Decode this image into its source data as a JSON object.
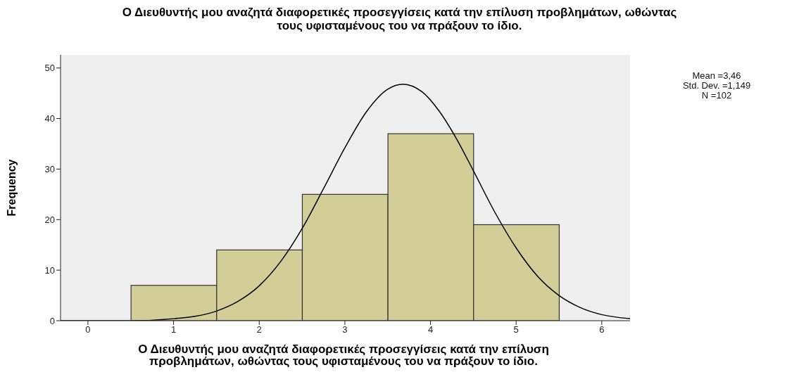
{
  "chart_data": {
    "type": "histogram",
    "title": "Ο Διευθυντής μου αναζητά διαφορετικές προσεγγίσεις κατά την επίλυση προβλημάτων, ωθώντας τους υφισταμένους του να πράξουν το ίδιο.",
    "xlabel": "Ο Διευθυντής μου αναζητά διαφορετικές προσεγγίσεις κατά την επίλυση προβλημάτων, ωθώντας τους υφισταμένους του να πράξουν το ίδιο.",
    "ylabel": "Frequency",
    "bins": [
      0.5,
      1.5,
      2.5,
      3.5,
      4.5,
      5.5
    ],
    "values": [
      7,
      14,
      25,
      37,
      19
    ],
    "color": "#d3cd97",
    "series": [
      {
        "type": "line",
        "color": "#000000",
        "x": [
          -0.32,
          0,
          0.5,
          1,
          1.5,
          1.75,
          2,
          2.25,
          2.5,
          2.75,
          3,
          3.25,
          3.5,
          3.68,
          3.9,
          4.1,
          4.3,
          4.5,
          4.75,
          5,
          5.25,
          5.5,
          5.75,
          6,
          6.33
        ],
        "values": [
          0,
          0,
          0,
          0.4,
          1.9,
          3.8,
          6.9,
          11.7,
          18.2,
          26.1,
          34.2,
          41.3,
          45.8,
          46.8,
          45.3,
          41.5,
          36.1,
          29.7,
          21.5,
          14.4,
          8.8,
          5,
          2.6,
          1.2,
          0.4
        ]
      }
    ],
    "xlim": [
      -0.32,
      6.33
    ],
    "xticks": [
      0,
      1,
      2,
      3,
      4,
      5,
      6
    ],
    "ylim": [
      0,
      52.6
    ],
    "yticks": [
      0,
      10,
      20,
      30,
      40,
      50
    ],
    "grid": false,
    "legend": false,
    "annotations": [
      "Mean =3,46",
      "Std. Dev. =1,149",
      "N =102"
    ]
  }
}
